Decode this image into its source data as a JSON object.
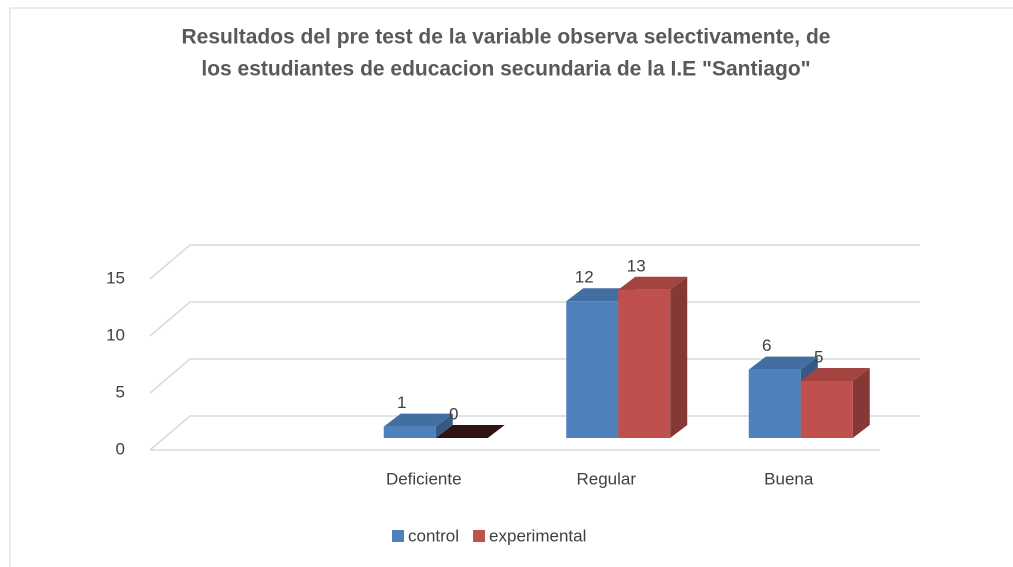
{
  "chart_data": {
    "type": "bar3d",
    "title": [
      "Resultados del pre test de la variable  observa selectivamente, de",
      "los estudiantes de educacion secundaria de la I.E \"Santiago\""
    ],
    "categories": [
      null,
      "Deficiente",
      "Regular",
      "Buena"
    ],
    "series": [
      {
        "name": "control",
        "color": "#4f81bd",
        "values": [
          null,
          1,
          12,
          6
        ]
      },
      {
        "name": "experimental",
        "color": "#c0504d",
        "values": [
          null,
          0,
          13,
          5
        ]
      }
    ],
    "ylim": [
      0,
      15
    ],
    "yticks": [
      0,
      5,
      10,
      15
    ],
    "grid": true,
    "legend": "bottom"
  }
}
